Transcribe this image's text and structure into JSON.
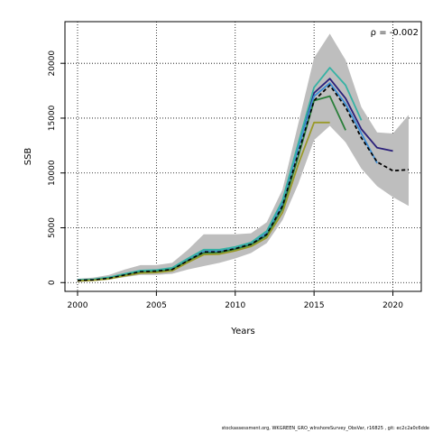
{
  "chart_data": {
    "type": "line",
    "xlabel": "Years",
    "ylabel": "SSB",
    "xlim": [
      1999.2,
      2021.8
    ],
    "ylim": [
      -800,
      23800
    ],
    "x_ticks": [
      2000,
      2005,
      2010,
      2015,
      2020
    ],
    "y_ticks": [
      0,
      5000,
      10000,
      15000,
      20000
    ],
    "grid": true,
    "annotation": "ρ = -0.002",
    "band": {
      "x": [
        2000,
        2001,
        2002,
        2003,
        2004,
        2005,
        2006,
        2007,
        2008,
        2009,
        2010,
        2011,
        2012,
        2013,
        2014,
        2015,
        2016,
        2017,
        2018,
        2019,
        2020,
        2021
      ],
      "upper": [
        350,
        450,
        700,
        1200,
        1600,
        1600,
        1800,
        3000,
        4400,
        4400,
        4400,
        4500,
        5500,
        8500,
        14500,
        20500,
        22700,
        20300,
        16000,
        13700,
        13600,
        15300
      ],
      "lower": [
        50,
        150,
        300,
        500,
        700,
        700,
        800,
        1200,
        1500,
        1800,
        2200,
        2700,
        3600,
        5700,
        9000,
        13000,
        14300,
        12800,
        10400,
        8800,
        7800,
        7000
      ],
      "color": "#bebebe"
    },
    "series": [
      {
        "color": "#000000",
        "dashed": true,
        "x": [
          2000,
          2001,
          2002,
          2003,
          2004,
          2005,
          2006,
          2007,
          2008,
          2009,
          2010,
          2011,
          2012,
          2013,
          2014,
          2015,
          2016,
          2017,
          2018,
          2019,
          2020,
          2021
        ],
        "values": [
          200,
          250,
          400,
          700,
          1000,
          1050,
          1200,
          2000,
          2800,
          2800,
          3100,
          3500,
          4400,
          7000,
          11800,
          16600,
          18000,
          16000,
          13200,
          11000,
          10200,
          10300
        ]
      },
      {
        "color": "#2a1f7a",
        "x": [
          2000,
          2001,
          2002,
          2003,
          2004,
          2005,
          2006,
          2007,
          2008,
          2009,
          2010,
          2011,
          2012,
          2013,
          2014,
          2015,
          2016,
          2017,
          2018,
          2019,
          2020
        ],
        "values": [
          200,
          260,
          420,
          720,
          1020,
          1070,
          1230,
          2050,
          2850,
          2850,
          3150,
          3550,
          4500,
          7200,
          12300,
          17300,
          18600,
          16800,
          14000,
          12300,
          12000
        ]
      },
      {
        "color": "#3f8fd6",
        "x": [
          2000,
          2001,
          2002,
          2003,
          2004,
          2005,
          2006,
          2007,
          2008,
          2009,
          2010,
          2011,
          2012,
          2013,
          2014,
          2015,
          2016,
          2017,
          2018,
          2019
        ],
        "values": [
          200,
          260,
          420,
          720,
          1020,
          1070,
          1230,
          2050,
          2850,
          2850,
          3150,
          3550,
          4500,
          7200,
          12300,
          17000,
          18200,
          16300,
          13600,
          10900
        ]
      },
      {
        "color": "#35b2a4",
        "x": [
          2000,
          2001,
          2002,
          2003,
          2004,
          2005,
          2006,
          2007,
          2008,
          2009,
          2010,
          2011,
          2012,
          2013,
          2014,
          2015,
          2016,
          2017,
          2018
        ],
        "values": [
          250,
          300,
          480,
          800,
          1100,
          1150,
          1350,
          2200,
          3000,
          3000,
          3250,
          3650,
          4700,
          7500,
          12700,
          17800,
          19600,
          18000,
          14800
        ]
      },
      {
        "color": "#2a7f3a",
        "x": [
          2000,
          2001,
          2002,
          2003,
          2004,
          2005,
          2006,
          2007,
          2008,
          2009,
          2010,
          2011,
          2012,
          2013,
          2014,
          2015,
          2016,
          2017
        ],
        "values": [
          180,
          240,
          380,
          680,
          950,
          1000,
          1180,
          1980,
          2700,
          2750,
          3050,
          3450,
          4300,
          6800,
          11500,
          16600,
          17000,
          13900
        ]
      },
      {
        "color": "#9a9a2a",
        "x": [
          2000,
          2001,
          2002,
          2003,
          2004,
          2005,
          2006,
          2007,
          2008,
          2009,
          2010,
          2011,
          2012,
          2013,
          2014,
          2015,
          2016
        ],
        "values": [
          150,
          210,
          340,
          620,
          870,
          920,
          1080,
          1850,
          2550,
          2600,
          2900,
          3300,
          4100,
          6400,
          10800,
          14600,
          14600
        ]
      }
    ]
  },
  "footer": "stockassessment.org,  WKGREEN_GRO_wInshoreSurvey_ObsVar,  r16825 ,  git: ec2c2a0c6dde"
}
